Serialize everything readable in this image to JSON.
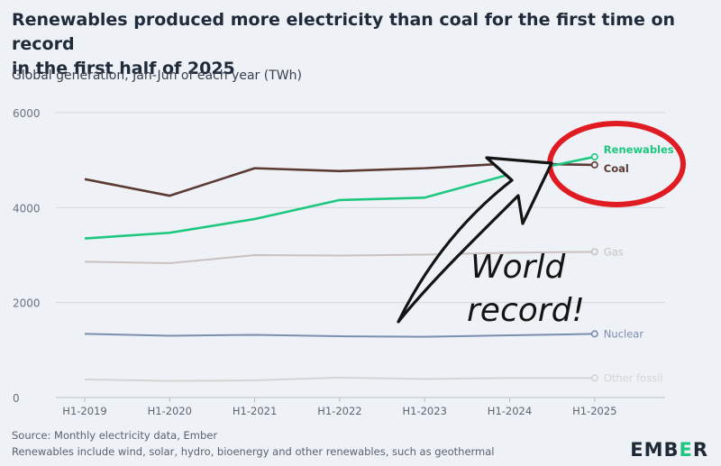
{
  "title_line1": "Renewables produced more electricity than coal for the first time on record",
  "title_line2": "in the first half of 2025",
  "subtitle": "Global generation, Jan-Jun of each year (TWh)",
  "source_line1": "Source: Monthly electricity data, Ember",
  "source_line2": "Renewables include wind, solar, hydro, bioenergy and other renewables, such as geothermal",
  "logo": {
    "prefix": "EMB",
    "accent": "E",
    "suffix": "R"
  },
  "annotation": {
    "line1": "World",
    "line2": "record!"
  },
  "chart_data": {
    "type": "line",
    "categories": [
      "H1-2019",
      "H1-2020",
      "H1-2021",
      "H1-2022",
      "H1-2023",
      "H1-2024",
      "H1-2025"
    ],
    "ylim": [
      0,
      6000
    ],
    "yticks": [
      0,
      2000,
      4000,
      6000
    ],
    "grid": true,
    "series": [
      {
        "name": "Renewables",
        "color": "#1ec77f",
        "values": [
          3350,
          3470,
          3760,
          4160,
          4210,
          4700,
          5070
        ]
      },
      {
        "name": "Coal",
        "color": "#5a3a33",
        "values": [
          4600,
          4250,
          4830,
          4770,
          4830,
          4930,
          4900
        ]
      },
      {
        "name": "Gas",
        "color": "#c9c1c0",
        "values": [
          2860,
          2830,
          3000,
          2990,
          3010,
          3050,
          3070
        ]
      },
      {
        "name": "Nuclear",
        "color": "#7b8ead",
        "values": [
          1340,
          1300,
          1320,
          1290,
          1280,
          1310,
          1340
        ]
      },
      {
        "name": "Other fossil",
        "color": "#d4d4d4",
        "values": [
          380,
          350,
          360,
          420,
          390,
          410,
          410
        ]
      }
    ]
  }
}
